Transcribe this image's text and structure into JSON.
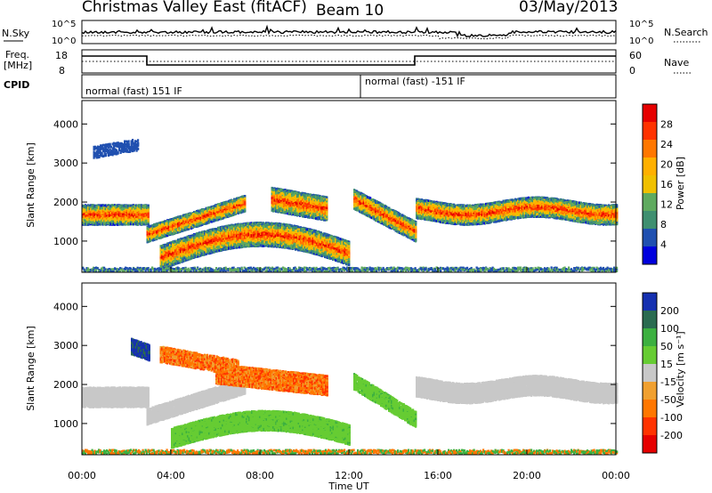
{
  "header": {
    "title": "Christmas Valley East (fitACF)",
    "beam": "Beam 10",
    "date": "03/May/2013"
  },
  "top_panels": {
    "nsky_label": "N.Sky",
    "nsearch_label": "N.Search",
    "nsky_ticks": [
      "10^5",
      "10^0"
    ],
    "freq_label_1": "Freq.",
    "freq_label_2": "[MHz]",
    "freq_ticks": [
      "18",
      "8"
    ],
    "nave_label": "Nave",
    "nave_ticks": [
      "60",
      "0"
    ],
    "cpid_label": "CPID",
    "cpid_1": "normal (fast) 151 IF",
    "cpid_2": "normal (fast) -151 IF"
  },
  "chart_data": [
    {
      "type": "heatmap",
      "name": "power",
      "ylabel": "Slant Range [km]",
      "yticks": [
        1000,
        2000,
        3000,
        4000
      ],
      "ylim": [
        200,
        4600
      ],
      "xlim": [
        0,
        24
      ],
      "colorbar_label": "Power [dB]",
      "colorbar_ticks": [
        "28",
        "24",
        "20",
        "16",
        "12",
        "8",
        "4"
      ],
      "colors": [
        "#e60000",
        "#ff3300",
        "#ff7700",
        "#ffb000",
        "#f0c000",
        "#5faa5f",
        "#3f8f70",
        "#2050b0",
        "#0000dd"
      ]
    },
    {
      "type": "heatmap",
      "name": "velocity",
      "ylabel": "Slant Range [km]",
      "yticks": [
        1000,
        2000,
        3000,
        4000
      ],
      "ylim": [
        200,
        4600
      ],
      "xlim": [
        0,
        24
      ],
      "colorbar_label": "Velocity [m s⁻¹]",
      "colorbar_ticks": [
        "200",
        "100",
        "50",
        "15",
        "-15",
        "-50",
        "-100",
        "-200"
      ],
      "colors": [
        "#1530b0",
        "#2a6b50",
        "#3cb040",
        "#66cc33",
        "#c8c8c8",
        "#f0a030",
        "#ff7700",
        "#ff3300",
        "#e60000"
      ]
    }
  ],
  "xaxis": {
    "label": "Time UT",
    "ticks": [
      "00:00",
      "04:00",
      "08:00",
      "12:00",
      "16:00",
      "20:00",
      "00:00"
    ]
  }
}
